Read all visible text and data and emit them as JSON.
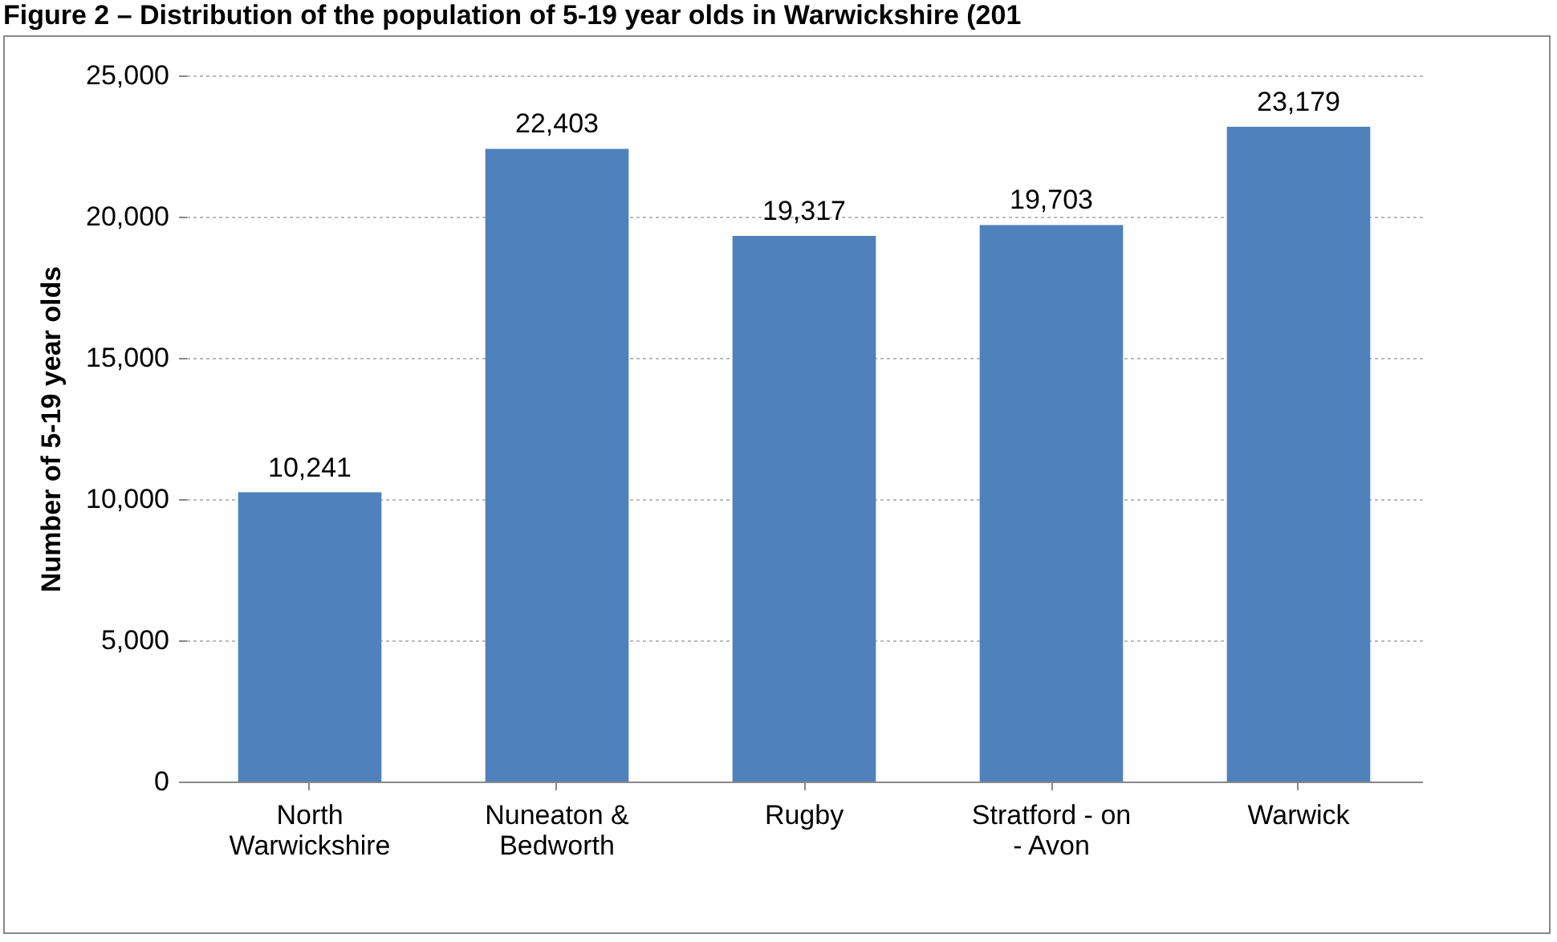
{
  "chart_data": {
    "type": "bar",
    "title": "Figure 2 – Distribution of the population of 5-19 year olds in Warwickshire (201",
    "ylabel": "Number of 5-19 year olds",
    "categories": [
      "North Warwickshire",
      "Nuneaton & Bedworth",
      "Rugby",
      "Stratford - on - Avon",
      "Warwick"
    ],
    "values": [
      10241,
      22403,
      19317,
      19703,
      23179
    ],
    "value_labels": [
      "10,241",
      "22,403",
      "19,317",
      "19,703",
      "23,179"
    ],
    "color": "#4f81bd",
    "ylim": [
      0,
      25000
    ],
    "yticks": [
      {
        "value": 0,
        "label": "0"
      },
      {
        "value": 5000,
        "label": "5,000"
      },
      {
        "value": 10000,
        "label": "10,000"
      },
      {
        "value": 15000,
        "label": "15,000"
      },
      {
        "value": 20000,
        "label": "20,000"
      },
      {
        "value": 25000,
        "label": "25,000"
      }
    ],
    "grid": "y"
  }
}
